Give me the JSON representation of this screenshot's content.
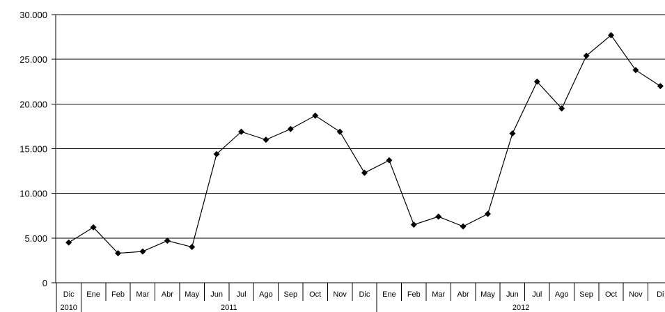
{
  "chart_data": {
    "type": "line",
    "title": "",
    "xlabel": "",
    "ylabel": "",
    "ylim": [
      0,
      30000
    ],
    "yticks": [
      0,
      5000,
      10000,
      15000,
      20000,
      25000,
      30000
    ],
    "ytick_labels": [
      "0",
      "5.000",
      "10.000",
      "15.000",
      "20.000",
      "25.000",
      "30.000"
    ],
    "grid": "horizontal",
    "legend": "none",
    "marker": "diamond",
    "line_color": "#000000",
    "categories": [
      "Dic",
      "Ene",
      "Feb",
      "Mar",
      "Abr",
      "May",
      "Jun",
      "Jul",
      "Ago",
      "Sep",
      "Oct",
      "Nov",
      "Dic",
      "Ene",
      "Feb",
      "Mar",
      "Abr",
      "May",
      "Jun",
      "Jul",
      "Ago",
      "Sep",
      "Oct",
      "Nov",
      "Dic"
    ],
    "category_labels": [
      "Dic",
      "Ene",
      "Feb",
      "Mar",
      "Abr",
      "May",
      "Jun",
      "Jul",
      "Ago",
      "Sep",
      "Oct",
      "Nov",
      "Dic",
      "Ene",
      "Feb",
      "Mar",
      "Abr",
      "May",
      "Jun",
      "Jul",
      "Ago",
      "Sep",
      "Oct",
      "Nov",
      "Di"
    ],
    "year_groups": [
      {
        "label": "2010",
        "start": 0,
        "count": 1
      },
      {
        "label": "2011",
        "start": 1,
        "count": 12
      },
      {
        "label": "2012",
        "start": 13,
        "count": 12
      }
    ],
    "series": [
      {
        "values": [
          4500,
          6200,
          3300,
          3500,
          4700,
          4000,
          14400,
          16900,
          16000,
          17200,
          18700,
          16900,
          12300,
          13700,
          6500,
          7400,
          6300,
          7700,
          16700,
          22500,
          19500,
          25400,
          27700,
          23800,
          22000
        ]
      }
    ]
  }
}
